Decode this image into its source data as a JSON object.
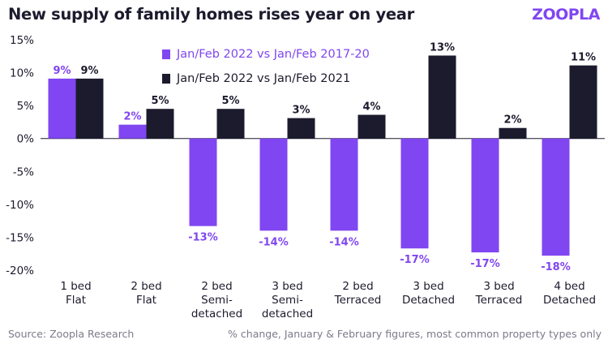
{
  "header": {
    "title": "New supply of family homes rises year on year",
    "logo": "ZOOPLA"
  },
  "footer": {
    "source": "Source: Zoopla Research",
    "note": "% change, January & February figures, most common property types only"
  },
  "colors": {
    "purple": "#8046f1",
    "dark": "#1c1b2d"
  },
  "chart_data": {
    "type": "bar",
    "title": "New supply of family homes rises year on year",
    "xlabel": "",
    "ylabel": "",
    "ylim": [
      -20,
      15
    ],
    "yticks": [
      15,
      10,
      5,
      0,
      -5,
      -10,
      -15,
      -20
    ],
    "ytick_labels": [
      "15%",
      "10%",
      "5%",
      "0%",
      "-5%",
      "-10%",
      "-15%",
      "-20%"
    ],
    "legend_position": "top-center",
    "categories": [
      [
        "1 bed",
        "Flat"
      ],
      [
        "2 bed",
        "Flat"
      ],
      [
        "2 bed",
        "Semi-",
        "detached"
      ],
      [
        "3 bed",
        "Semi-",
        "detached"
      ],
      [
        "2 bed",
        "Terraced"
      ],
      [
        "3 bed",
        "Detached"
      ],
      [
        "3 bed",
        "Terraced"
      ],
      [
        "4 bed",
        "Detached"
      ]
    ],
    "series": [
      {
        "name": "Jan/Feb 2022 vs Jan/Feb 2017-20",
        "color": "#8046f1",
        "values": [
          9.1,
          2.1,
          -13.3,
          -14.0,
          -14.0,
          -16.7,
          -17.3,
          -17.8
        ],
        "labels": [
          "9%",
          "2%",
          "-13%",
          "-14%",
          "-14%",
          "-17%",
          "-17%",
          "-18%"
        ]
      },
      {
        "name": "Jan/Feb 2022 vs Jan/Feb 2021",
        "color": "#1c1b2d",
        "values": [
          9.1,
          4.5,
          4.5,
          3.1,
          3.6,
          12.6,
          1.6,
          11.1
        ],
        "labels": [
          "9%",
          "5%",
          "5%",
          "3%",
          "4%",
          "13%",
          "2%",
          "11%"
        ]
      }
    ]
  }
}
